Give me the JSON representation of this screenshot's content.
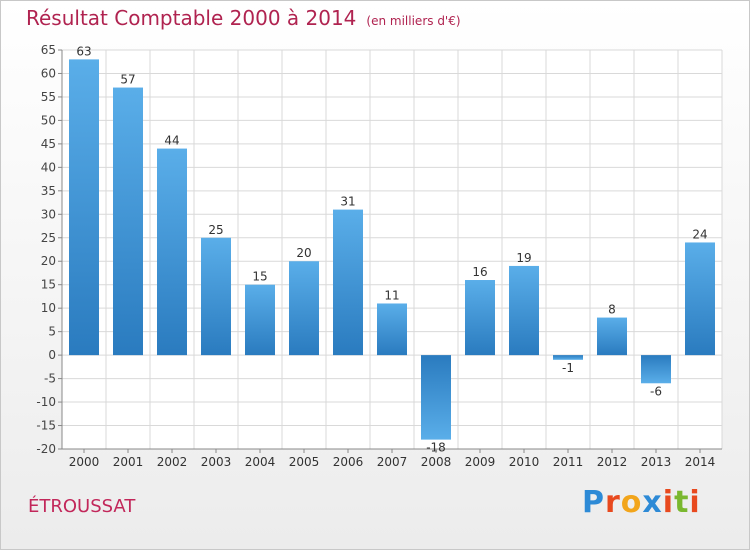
{
  "title": "Résultat Comptable 2000 à 2014",
  "unit": "(en milliers d'€)",
  "place": "ÉTROUSSAT",
  "logo": {
    "text": "Proxiti",
    "letters": [
      "P",
      "r",
      "o",
      "x",
      "i",
      "t",
      "i"
    ],
    "colors": [
      "#2d8ad6",
      "#e8491e",
      "#f2a51b",
      "#2d8ad6",
      "#e8491e",
      "#7ab82f",
      "#e8491e"
    ]
  },
  "colors": {
    "bar_top": "#5aaee9",
    "bar_bottom": "#2a7bbf",
    "grid": "#d9d9d9",
    "title": "#b02350"
  },
  "chart_data": {
    "type": "bar",
    "title": "Résultat Comptable 2000 à 2014",
    "subtitle": "(en milliers d'€)",
    "xlabel": "",
    "ylabel": "",
    "categories": [
      "2000",
      "2001",
      "2002",
      "2003",
      "2004",
      "2005",
      "2006",
      "2007",
      "2008",
      "2009",
      "2010",
      "2011",
      "2012",
      "2013",
      "2014"
    ],
    "values": [
      63,
      57,
      44,
      25,
      15,
      20,
      31,
      11,
      -18,
      16,
      19,
      -1,
      8,
      -6,
      24
    ],
    "ylim": [
      -20,
      65
    ],
    "yticks": [
      65,
      60,
      55,
      50,
      45,
      40,
      35,
      30,
      25,
      20,
      15,
      10,
      5,
      0,
      -5,
      -10,
      -15,
      -20
    ],
    "grid": true,
    "legend": "none"
  }
}
